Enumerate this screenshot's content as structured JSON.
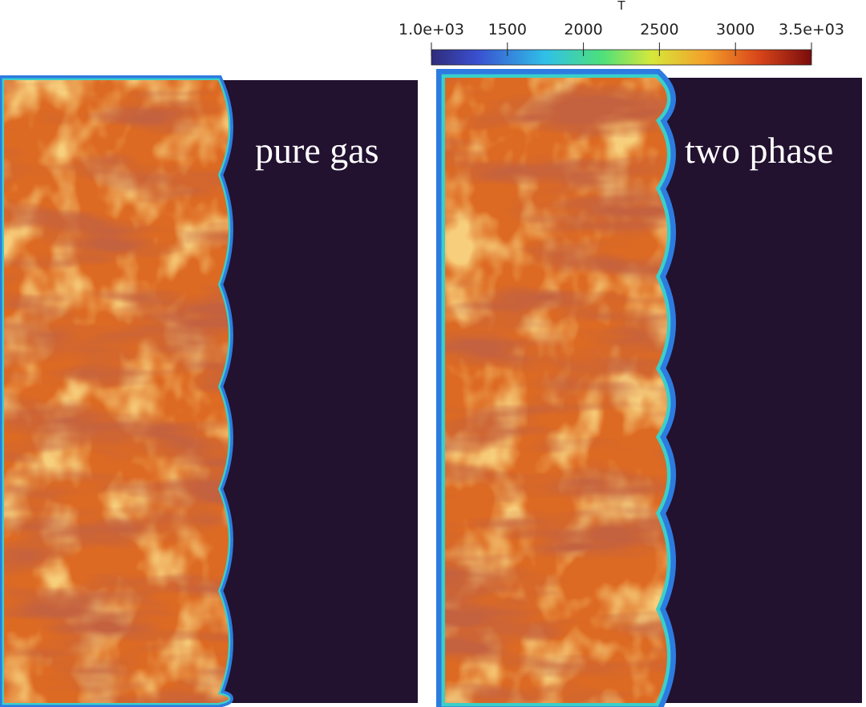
{
  "colorbar": {
    "title": "T",
    "range": [
      1000,
      3500
    ],
    "ticks": [
      {
        "value": 1000,
        "label": "1.0e+03"
      },
      1500,
      2000,
      2500,
      3000,
      {
        "value": 3500,
        "label": "3.5e+03"
      }
    ]
  },
  "panels": [
    {
      "label": "pure gas"
    },
    {
      "label": "two phase"
    }
  ]
}
